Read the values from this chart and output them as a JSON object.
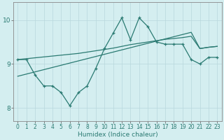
{
  "xlabel": "Humidex (Indice chaleur)",
  "x_data": [
    0,
    1,
    2,
    3,
    4,
    5,
    6,
    7,
    8,
    9,
    10,
    11,
    12,
    13,
    14,
    15,
    16,
    17,
    18,
    19,
    20,
    21,
    22,
    23
  ],
  "line1_y": [
    9.1,
    9.1,
    8.75,
    8.5,
    8.5,
    8.35,
    8.05,
    8.35,
    8.5,
    8.9,
    9.35,
    9.7,
    10.05,
    9.55,
    10.05,
    9.85,
    9.5,
    9.45,
    9.45,
    9.45,
    9.1,
    9.0,
    9.15,
    9.15
  ],
  "line2_y": [
    9.1,
    9.12,
    9.14,
    9.16,
    9.18,
    9.2,
    9.22,
    9.24,
    9.27,
    9.3,
    9.33,
    9.36,
    9.4,
    9.44,
    9.47,
    9.5,
    9.53,
    9.56,
    9.58,
    9.6,
    9.63,
    9.35,
    9.38,
    9.4
  ],
  "line3_y": [
    8.72,
    8.77,
    8.82,
    8.87,
    8.92,
    8.97,
    9.02,
    9.07,
    9.12,
    9.17,
    9.22,
    9.27,
    9.32,
    9.37,
    9.42,
    9.47,
    9.52,
    9.57,
    9.62,
    9.67,
    9.72,
    9.35,
    9.38,
    9.4
  ],
  "line_color": "#2a7a72",
  "bg_color": "#d4eef0",
  "grid_color": "#b8d8dc",
  "ylim": [
    7.7,
    10.4
  ],
  "yticks": [
    8,
    9,
    10
  ],
  "xlim": [
    -0.5,
    23.5
  ],
  "xticks": [
    0,
    1,
    2,
    3,
    4,
    5,
    6,
    7,
    8,
    9,
    10,
    11,
    12,
    13,
    14,
    15,
    16,
    17,
    18,
    19,
    20,
    21,
    22,
    23
  ],
  "figwidth": 3.2,
  "figheight": 2.0,
  "dpi": 100
}
